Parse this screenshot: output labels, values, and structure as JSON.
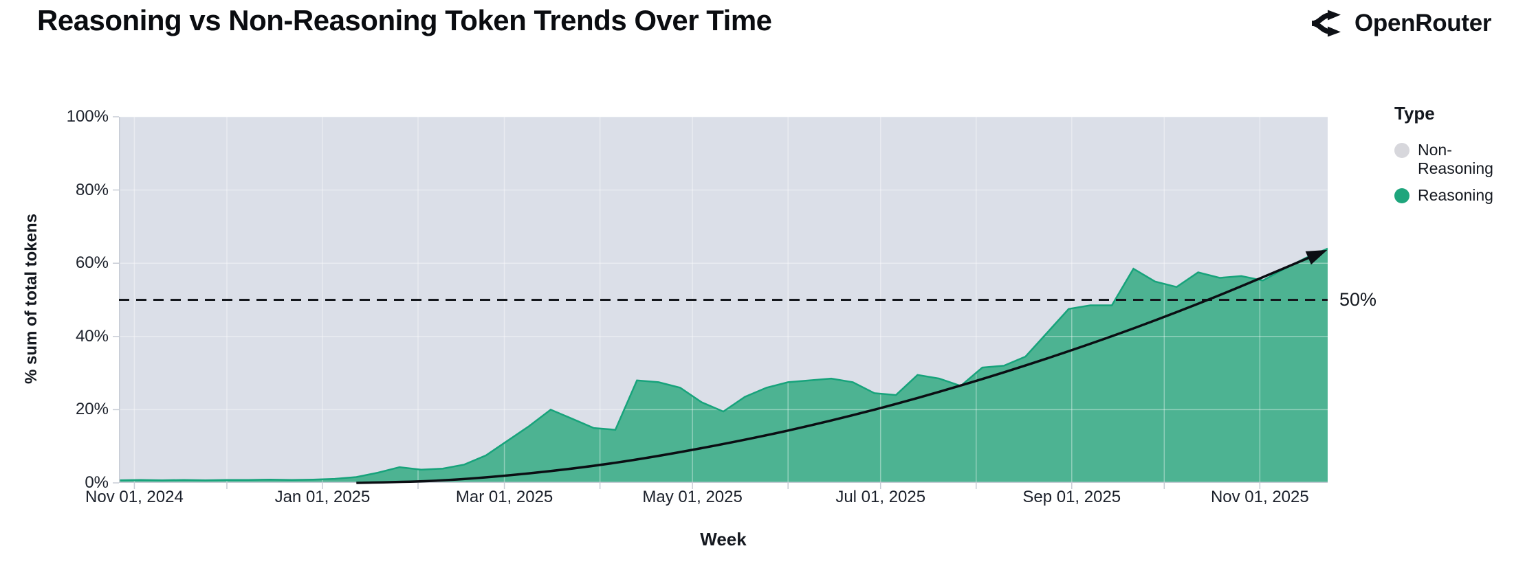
{
  "header": {
    "title": "Reasoning vs Non-Reasoning Token Trends Over Time",
    "brand": "OpenRouter",
    "brand_icon": "split-arrows-icon"
  },
  "legend": {
    "title": "Type",
    "items": [
      {
        "label": "Non-Reasoning",
        "color": "#d7d7dc"
      },
      {
        "label": "Reasoning",
        "color": "#1ea57c"
      }
    ]
  },
  "chart_data": {
    "type": "area",
    "stacked_percent": true,
    "title": "Reasoning vs Non-Reasoning Token Trends Over Time",
    "xlabel": "Week",
    "ylabel": "% sum of total tokens",
    "ylim": [
      0,
      100
    ],
    "grid": true,
    "legend_position": "right",
    "colors": {
      "reasoning_fill": "#4db392",
      "reasoning_edge": "#17a37b",
      "non_reasoning_fill": "#dbdfe8",
      "trend_line": "#0b0e13",
      "axis": "#c7ccd5",
      "gridline": "rgba(255,255,255,0.38)"
    },
    "start_date": "2024-10-27",
    "end_date": "2025-11-23",
    "total_days": 392,
    "y_ticks": [
      {
        "pct": 0,
        "label": "0%"
      },
      {
        "pct": 20,
        "label": "20%"
      },
      {
        "pct": 40,
        "label": "40%"
      },
      {
        "pct": 60,
        "label": "60%"
      },
      {
        "pct": 80,
        "label": "80%"
      },
      {
        "pct": 100,
        "label": "100%"
      }
    ],
    "x_ticks": [
      {
        "day": 5,
        "label": "Nov 01, 2024"
      },
      {
        "day": 66,
        "label": "Jan 01, 2025"
      },
      {
        "day": 125,
        "label": "Mar 01, 2025"
      },
      {
        "day": 186,
        "label": "May 01, 2025"
      },
      {
        "day": 247,
        "label": "Jul 01, 2025"
      },
      {
        "day": 309,
        "label": "Sep 01, 2025"
      },
      {
        "day": 370,
        "label": "Nov 01, 2025"
      }
    ],
    "month_gridlines_days": [
      5,
      35,
      66,
      97,
      125,
      156,
      186,
      217,
      247,
      278,
      309,
      339,
      370
    ],
    "series": [
      {
        "name": "Reasoning",
        "unit": "% of total tokens",
        "weeks": [
          [
            "2024-10-27",
            0.7
          ],
          [
            "2024-11-03",
            0.8
          ],
          [
            "2024-11-10",
            0.7
          ],
          [
            "2024-11-17",
            0.8
          ],
          [
            "2024-11-24",
            0.7
          ],
          [
            "2024-12-01",
            0.8
          ],
          [
            "2024-12-08",
            0.8
          ],
          [
            "2024-12-15",
            0.9
          ],
          [
            "2024-12-22",
            0.8
          ],
          [
            "2024-12-29",
            0.9
          ],
          [
            "2025-01-05",
            1.1
          ],
          [
            "2025-01-12",
            1.6
          ],
          [
            "2025-01-19",
            2.8
          ],
          [
            "2025-01-26",
            4.3
          ],
          [
            "2025-02-02",
            3.6
          ],
          [
            "2025-02-09",
            3.9
          ],
          [
            "2025-02-16",
            5.0
          ],
          [
            "2025-02-23",
            7.5
          ],
          [
            "2025-03-02",
            11.5
          ],
          [
            "2025-03-09",
            15.5
          ],
          [
            "2025-03-16",
            20.0
          ],
          [
            "2025-03-23",
            17.5
          ],
          [
            "2025-03-30",
            15.0
          ],
          [
            "2025-04-06",
            14.5
          ],
          [
            "2025-04-13",
            28.0
          ],
          [
            "2025-04-20",
            27.5
          ],
          [
            "2025-04-27",
            26.0
          ],
          [
            "2025-05-04",
            22.0
          ],
          [
            "2025-05-11",
            19.5
          ],
          [
            "2025-05-18",
            23.5
          ],
          [
            "2025-05-25",
            26.0
          ],
          [
            "2025-06-01",
            27.5
          ],
          [
            "2025-06-08",
            28.0
          ],
          [
            "2025-06-15",
            28.5
          ],
          [
            "2025-06-22",
            27.5
          ],
          [
            "2025-06-29",
            24.5
          ],
          [
            "2025-07-06",
            24.0
          ],
          [
            "2025-07-13",
            29.5
          ],
          [
            "2025-07-20",
            28.5
          ],
          [
            "2025-07-27",
            26.5
          ],
          [
            "2025-08-03",
            31.5
          ],
          [
            "2025-08-10",
            32.0
          ],
          [
            "2025-08-17",
            34.5
          ],
          [
            "2025-08-24",
            41.0
          ],
          [
            "2025-08-31",
            47.5
          ],
          [
            "2025-09-07",
            48.5
          ],
          [
            "2025-09-14",
            48.5
          ],
          [
            "2025-09-21",
            58.5
          ],
          [
            "2025-09-28",
            55.0
          ],
          [
            "2025-10-05",
            53.5
          ],
          [
            "2025-10-12",
            57.5
          ],
          [
            "2025-10-19",
            56.0
          ],
          [
            "2025-10-26",
            56.5
          ],
          [
            "2025-11-02",
            55.3
          ],
          [
            "2025-11-09",
            58.5
          ],
          [
            "2025-11-16",
            61.5
          ],
          [
            "2025-11-23",
            64.0
          ]
        ]
      },
      {
        "name": "Non-Reasoning",
        "unit": "% of total tokens",
        "values": "complement of Reasoning (stacked to 100%)"
      }
    ],
    "annotations": {
      "dashed_line_pct": 50,
      "dashed_line_label": "50%",
      "trend_arrow_points": [
        [
          77,
          0
        ],
        [
          105,
          0.7
        ],
        [
          133,
          2.6
        ],
        [
          161,
          5.5
        ],
        [
          189,
          9.5
        ],
        [
          217,
          14.3
        ],
        [
          245,
          20
        ],
        [
          273,
          26.6
        ],
        [
          301,
          34
        ],
        [
          329,
          42.2
        ],
        [
          357,
          51.3
        ],
        [
          389,
          62.6
        ]
      ]
    }
  }
}
